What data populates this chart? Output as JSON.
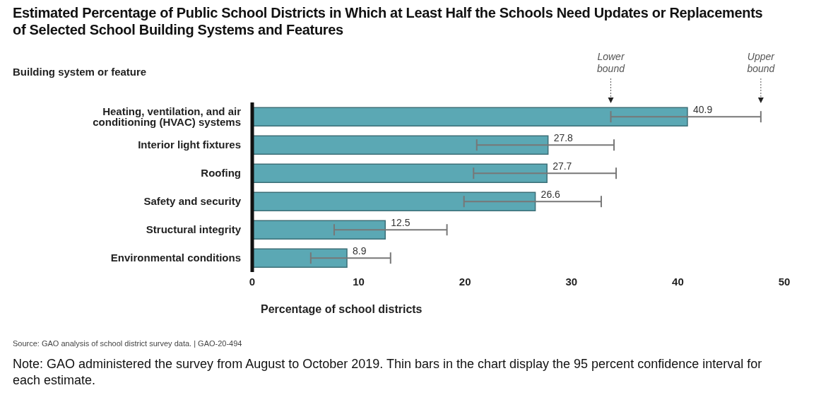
{
  "chart_data": {
    "type": "bar",
    "orientation": "horizontal",
    "title": "Estimated Percentage of Public School Districts in Which at Least Half the Schools Need Updates or Replacements of Selected School Building Systems and Features",
    "ylabel": "Building system or feature",
    "xlabel": "Percentage of school districts",
    "categories": [
      "Heating, ventilation, and air conditioning (HVAC) systems",
      "Interior light fixtures",
      "Roofing",
      "Safety and security",
      "Structural integrity",
      "Environmental conditions"
    ],
    "values": [
      40.9,
      27.8,
      27.7,
      26.6,
      12.5,
      8.9
    ],
    "errors": [
      [
        33.7,
        47.8
      ],
      [
        21.1,
        34.0
      ],
      [
        20.8,
        34.2
      ],
      [
        19.9,
        32.8
      ],
      [
        7.7,
        18.3
      ],
      [
        5.5,
        13.0
      ]
    ],
    "color": "#5ba8b4",
    "data_labels": true,
    "xlim": [
      0,
      50
    ],
    "xticks": [
      0,
      10,
      20,
      30,
      40,
      50
    ],
    "annotations": [
      "Lower bound",
      "Upper bound",
      "Source: GAO analysis of school district survey data.  |  GAO-20-494",
      "Note: GAO administered the survey from August to October 2019. Thin bars in the chart display the 95 percent confidence interval for each estimate."
    ]
  }
}
